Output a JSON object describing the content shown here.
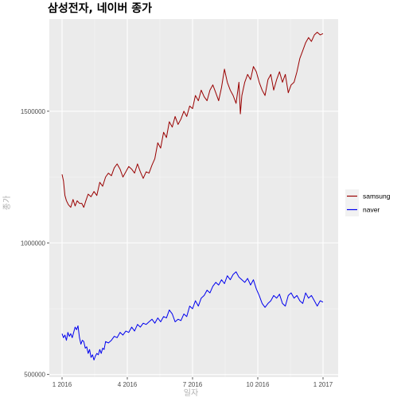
{
  "chart_data": {
    "type": "line",
    "title": "삼성전자, 네이버 종가",
    "xlabel": "일자",
    "ylabel": "종가",
    "x_ticks": [
      "1 2016",
      "4 2016",
      "7 2016",
      "10 2016",
      "1 2017"
    ],
    "y_ticks": [
      "500000",
      "1000000",
      "1500000"
    ],
    "ylim": [
      490000,
      1850000
    ],
    "grid": true,
    "legend_position": "right",
    "series": [
      {
        "name": "samsung",
        "color": "#990000",
        "points": [
          [
            0.0,
            1260000
          ],
          [
            0.05,
            1235000
          ],
          [
            0.1,
            1180000
          ],
          [
            0.15,
            1160000
          ],
          [
            0.22,
            1145000
          ],
          [
            0.3,
            1135000
          ],
          [
            0.38,
            1165000
          ],
          [
            0.45,
            1140000
          ],
          [
            0.52,
            1160000
          ],
          [
            0.6,
            1150000
          ],
          [
            0.68,
            1150000
          ],
          [
            0.75,
            1135000
          ],
          [
            0.82,
            1160000
          ],
          [
            0.9,
            1185000
          ],
          [
            1.0,
            1175000
          ],
          [
            1.1,
            1195000
          ],
          [
            1.2,
            1180000
          ],
          [
            1.3,
            1230000
          ],
          [
            1.4,
            1215000
          ],
          [
            1.5,
            1250000
          ],
          [
            1.6,
            1265000
          ],
          [
            1.7,
            1255000
          ],
          [
            1.8,
            1285000
          ],
          [
            1.9,
            1300000
          ],
          [
            2.0,
            1280000
          ],
          [
            2.1,
            1250000
          ],
          [
            2.2,
            1270000
          ],
          [
            2.3,
            1290000
          ],
          [
            2.4,
            1280000
          ],
          [
            2.5,
            1265000
          ],
          [
            2.6,
            1300000
          ],
          [
            2.7,
            1270000
          ],
          [
            2.8,
            1245000
          ],
          [
            2.9,
            1270000
          ],
          [
            3.0,
            1265000
          ],
          [
            3.1,
            1295000
          ],
          [
            3.2,
            1320000
          ],
          [
            3.3,
            1380000
          ],
          [
            3.4,
            1360000
          ],
          [
            3.5,
            1420000
          ],
          [
            3.6,
            1400000
          ],
          [
            3.7,
            1460000
          ],
          [
            3.8,
            1440000
          ],
          [
            3.9,
            1480000
          ],
          [
            4.0,
            1450000
          ],
          [
            4.1,
            1470000
          ],
          [
            4.2,
            1500000
          ],
          [
            4.3,
            1480000
          ],
          [
            4.4,
            1520000
          ],
          [
            4.5,
            1510000
          ],
          [
            4.6,
            1560000
          ],
          [
            4.7,
            1540000
          ],
          [
            4.8,
            1580000
          ],
          [
            4.9,
            1555000
          ],
          [
            5.0,
            1540000
          ],
          [
            5.1,
            1580000
          ],
          [
            5.2,
            1600000
          ],
          [
            5.3,
            1570000
          ],
          [
            5.4,
            1540000
          ],
          [
            5.5,
            1590000
          ],
          [
            5.6,
            1660000
          ],
          [
            5.7,
            1610000
          ],
          [
            5.8,
            1580000
          ],
          [
            5.9,
            1560000
          ],
          [
            6.0,
            1530000
          ],
          [
            6.1,
            1610000
          ],
          [
            6.15,
            1490000
          ],
          [
            6.2,
            1560000
          ],
          [
            6.3,
            1610000
          ],
          [
            6.4,
            1640000
          ],
          [
            6.5,
            1620000
          ],
          [
            6.6,
            1670000
          ],
          [
            6.7,
            1650000
          ],
          [
            6.8,
            1610000
          ],
          [
            6.9,
            1580000
          ],
          [
            7.0,
            1560000
          ],
          [
            7.1,
            1620000
          ],
          [
            7.2,
            1640000
          ],
          [
            7.3,
            1580000
          ],
          [
            7.4,
            1620000
          ],
          [
            7.5,
            1650000
          ],
          [
            7.6,
            1610000
          ],
          [
            7.7,
            1640000
          ],
          [
            7.8,
            1570000
          ],
          [
            7.9,
            1600000
          ],
          [
            8.0,
            1610000
          ],
          [
            8.1,
            1650000
          ],
          [
            8.2,
            1700000
          ],
          [
            8.3,
            1730000
          ],
          [
            8.4,
            1760000
          ],
          [
            8.5,
            1780000
          ],
          [
            8.6,
            1765000
          ],
          [
            8.7,
            1790000
          ],
          [
            8.8,
            1800000
          ],
          [
            8.9,
            1790000
          ],
          [
            9.0,
            1795000
          ]
        ]
      },
      {
        "name": "naver",
        "color": "#0000ee",
        "points": [
          [
            0.0,
            655000
          ],
          [
            0.05,
            640000
          ],
          [
            0.1,
            650000
          ],
          [
            0.15,
            630000
          ],
          [
            0.2,
            660000
          ],
          [
            0.25,
            645000
          ],
          [
            0.3,
            655000
          ],
          [
            0.35,
            640000
          ],
          [
            0.4,
            660000
          ],
          [
            0.45,
            680000
          ],
          [
            0.5,
            670000
          ],
          [
            0.55,
            685000
          ],
          [
            0.6,
            640000
          ],
          [
            0.65,
            615000
          ],
          [
            0.7,
            630000
          ],
          [
            0.75,
            625000
          ],
          [
            0.8,
            600000
          ],
          [
            0.85,
            605000
          ],
          [
            0.9,
            580000
          ],
          [
            0.95,
            595000
          ],
          [
            1.0,
            565000
          ],
          [
            1.05,
            575000
          ],
          [
            1.1,
            555000
          ],
          [
            1.15,
            570000
          ],
          [
            1.2,
            580000
          ],
          [
            1.25,
            575000
          ],
          [
            1.3,
            595000
          ],
          [
            1.35,
            580000
          ],
          [
            1.4,
            600000
          ],
          [
            1.45,
            595000
          ],
          [
            1.5,
            625000
          ],
          [
            1.6,
            620000
          ],
          [
            1.7,
            630000
          ],
          [
            1.8,
            645000
          ],
          [
            1.9,
            640000
          ],
          [
            2.0,
            660000
          ],
          [
            2.1,
            650000
          ],
          [
            2.2,
            665000
          ],
          [
            2.3,
            660000
          ],
          [
            2.4,
            680000
          ],
          [
            2.5,
            665000
          ],
          [
            2.6,
            690000
          ],
          [
            2.7,
            680000
          ],
          [
            2.8,
            695000
          ],
          [
            2.9,
            690000
          ],
          [
            3.0,
            700000
          ],
          [
            3.1,
            710000
          ],
          [
            3.2,
            695000
          ],
          [
            3.3,
            715000
          ],
          [
            3.4,
            700000
          ],
          [
            3.5,
            720000
          ],
          [
            3.6,
            715000
          ],
          [
            3.7,
            745000
          ],
          [
            3.8,
            730000
          ],
          [
            3.9,
            700000
          ],
          [
            4.0,
            710000
          ],
          [
            4.1,
            705000
          ],
          [
            4.2,
            730000
          ],
          [
            4.3,
            720000
          ],
          [
            4.4,
            760000
          ],
          [
            4.5,
            750000
          ],
          [
            4.6,
            780000
          ],
          [
            4.7,
            760000
          ],
          [
            4.8,
            790000
          ],
          [
            4.9,
            800000
          ],
          [
            5.0,
            820000
          ],
          [
            5.1,
            810000
          ],
          [
            5.2,
            835000
          ],
          [
            5.3,
            850000
          ],
          [
            5.4,
            840000
          ],
          [
            5.5,
            860000
          ],
          [
            5.6,
            845000
          ],
          [
            5.7,
            875000
          ],
          [
            5.8,
            860000
          ],
          [
            5.9,
            880000
          ],
          [
            6.0,
            890000
          ],
          [
            6.1,
            870000
          ],
          [
            6.2,
            860000
          ],
          [
            6.3,
            850000
          ],
          [
            6.4,
            865000
          ],
          [
            6.5,
            840000
          ],
          [
            6.6,
            860000
          ],
          [
            6.7,
            825000
          ],
          [
            6.8,
            800000
          ],
          [
            6.9,
            770000
          ],
          [
            7.0,
            755000
          ],
          [
            7.1,
            770000
          ],
          [
            7.2,
            780000
          ],
          [
            7.3,
            800000
          ],
          [
            7.4,
            790000
          ],
          [
            7.5,
            805000
          ],
          [
            7.6,
            770000
          ],
          [
            7.7,
            760000
          ],
          [
            7.8,
            800000
          ],
          [
            7.9,
            810000
          ],
          [
            8.0,
            790000
          ],
          [
            8.1,
            800000
          ],
          [
            8.2,
            780000
          ],
          [
            8.3,
            770000
          ],
          [
            8.4,
            810000
          ],
          [
            8.5,
            790000
          ],
          [
            8.6,
            800000
          ],
          [
            8.7,
            780000
          ],
          [
            8.8,
            760000
          ],
          [
            8.9,
            780000
          ],
          [
            9.0,
            775000
          ]
        ]
      }
    ]
  }
}
